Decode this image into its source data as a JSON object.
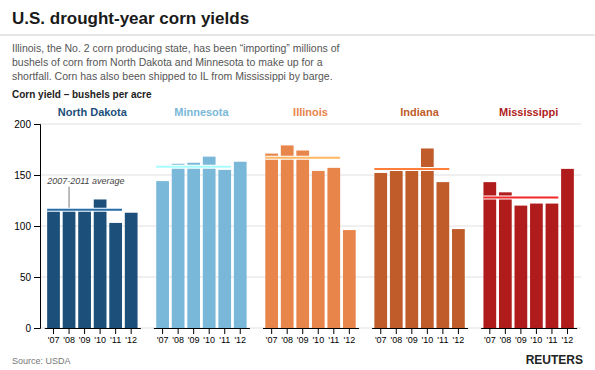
{
  "chart_data": {
    "type": "bar",
    "title": "U.S. drought-year corn yields",
    "subtitle": [
      "Illinois, the No. 2 corn producing state, has been “importing” millions of",
      "bushels of corn from North Dakota and Minnesota to make up for a",
      "shortfall. Corn has also been shipped to IL from Mississippi by barge."
    ],
    "ylabel": "Corn yield – bushels per acre",
    "annotation": "2007-2011 average",
    "source": "Source: USDA",
    "credit": "REUTERS",
    "categories": [
      "'07",
      "'08",
      "'09",
      "'10",
      "'11",
      "'12"
    ],
    "series": [
      {
        "name": "North Dakota",
        "color": "#1c4f7a",
        "values": [
          115,
          117,
          115,
          126,
          103,
          113
        ],
        "average": 116
      },
      {
        "name": "Minnesota",
        "color": "#7ab8d9",
        "values": [
          144,
          161,
          162,
          168,
          155,
          163
        ],
        "average": 158
      },
      {
        "name": "Illinois",
        "color": "#e8854a",
        "values": [
          171,
          179,
          174,
          154,
          157,
          96
        ],
        "average": 167
      },
      {
        "name": "Indiana",
        "color": "#bf5c2a",
        "values": [
          152,
          154,
          154,
          176,
          143,
          97
        ],
        "average": 156
      },
      {
        "name": "Mississippi",
        "color": "#b01c1c",
        "values": [
          143,
          133,
          120,
          122,
          122,
          156
        ],
        "average": 128
      }
    ],
    "ylim": [
      0,
      200
    ],
    "yticks": [
      0,
      50,
      100,
      150,
      200
    ],
    "grid": true
  }
}
